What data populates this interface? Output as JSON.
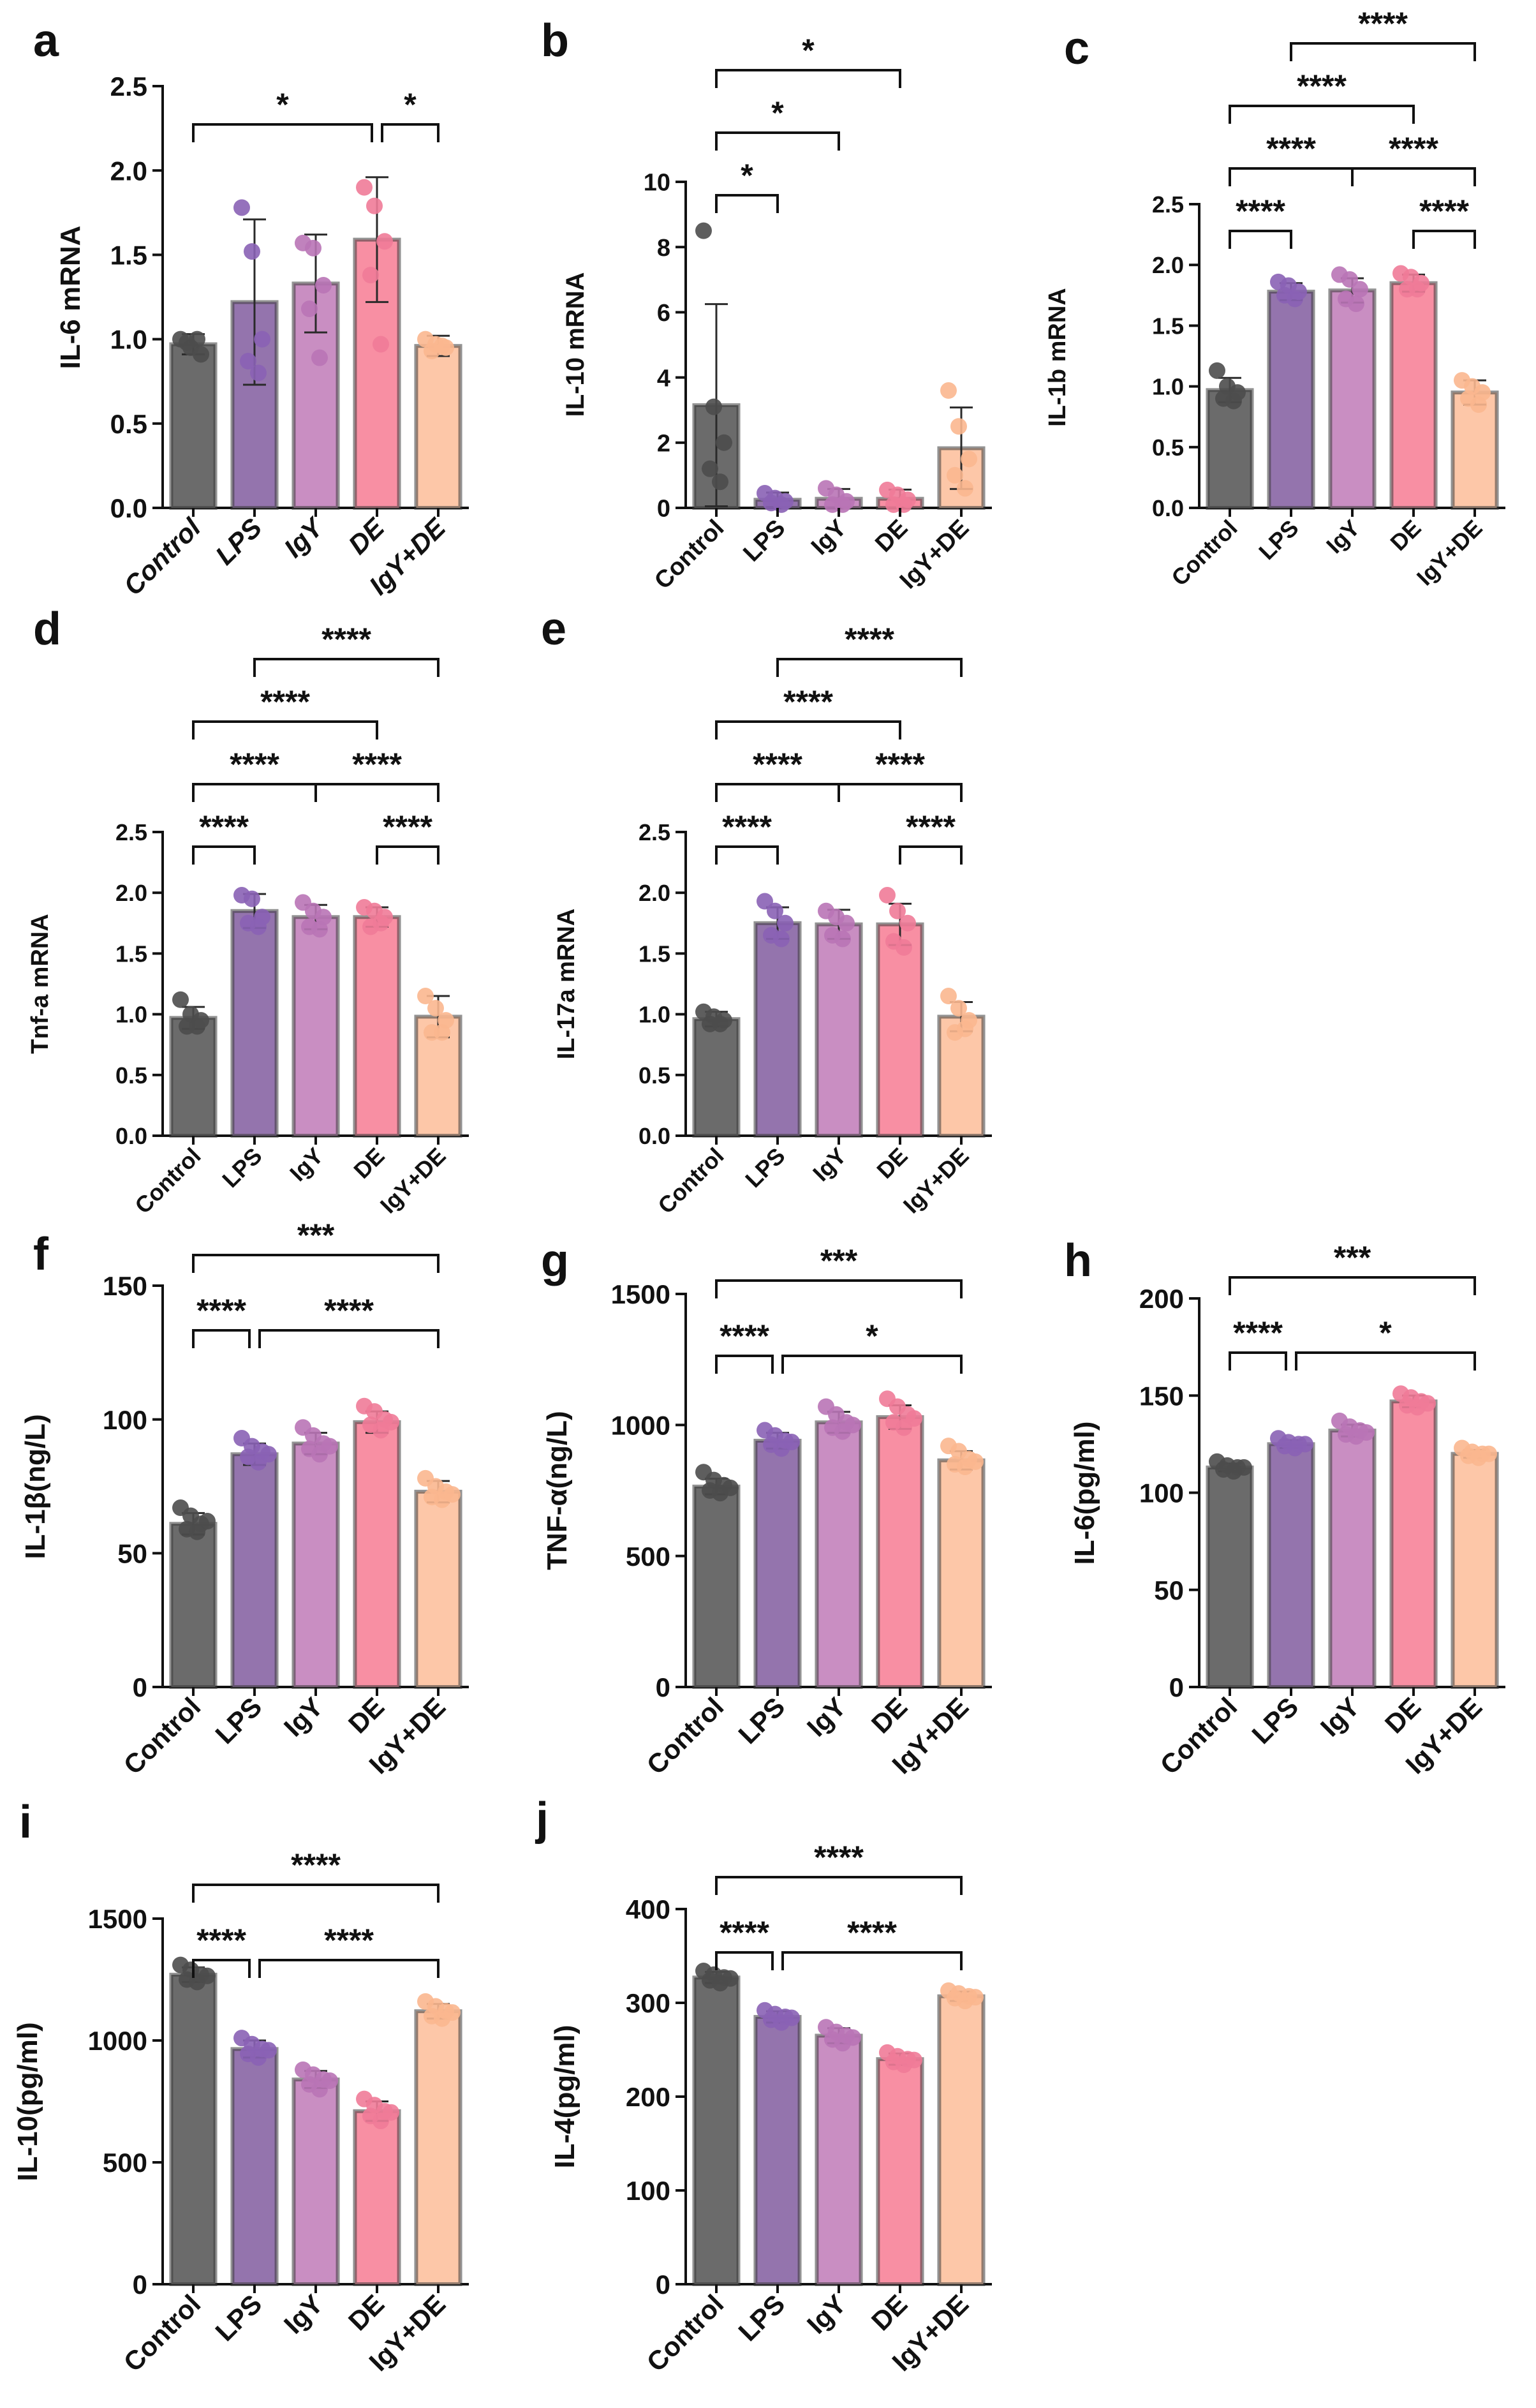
{
  "figure": {
    "colors": {
      "Control": "#6b6b6b",
      "LPS": "#9474ad",
      "IgY": "#c98ec2",
      "DE": "#f88fa3",
      "IgY+DE": "#fdc7a8"
    },
    "dot_colors": {
      "Control": "#4d4d4d",
      "LPS": "#8a62b5",
      "IgY": "#b974b6",
      "DE": "#f07b98",
      "IgY+DE": "#fbb78f"
    }
  },
  "chart_data": [
    {
      "panel": "a",
      "type": "bar",
      "ylabel": "IL-6 mRNA",
      "italic_ticks": true,
      "categories": [
        "Control",
        "LPS",
        "IgY",
        "DE",
        "IgY+DE"
      ],
      "values": [
        0.97,
        1.22,
        1.33,
        1.59,
        0.96
      ],
      "errors": [
        0.06,
        0.49,
        0.29,
        0.37,
        0.06
      ],
      "points": [
        [
          1.0,
          0.95,
          0.91,
          0.98,
          1.0
        ],
        [
          1.78,
          1.52,
          1.0,
          0.87,
          0.8
        ],
        [
          1.57,
          1.54,
          1.32,
          1.18,
          0.89
        ],
        [
          1.9,
          1.79,
          1.58,
          1.38,
          0.97
        ],
        [
          1.0,
          0.97,
          0.95,
          0.93,
          0.96
        ]
      ],
      "ylim": [
        0,
        2.5
      ],
      "yticks": [
        0,
        0.5,
        1,
        1.5,
        2,
        2.5
      ],
      "ytick_labels": [
        "0.0",
        "0.5",
        "1.0",
        "1.5",
        "2.0",
        "2.5"
      ],
      "significance": [
        {
          "from": "Control",
          "to": "DE",
          "label": "*"
        },
        {
          "from": "DE",
          "to": "IgY+DE",
          "label": "*"
        }
      ]
    },
    {
      "panel": "b",
      "type": "bar",
      "ylabel": "IL-10 mRNA",
      "italic_ticks": false,
      "categories": [
        "Control",
        "LPS",
        "IgY",
        "DE",
        "IgY+DE"
      ],
      "values": [
        3.15,
        0.25,
        0.28,
        0.28,
        1.83
      ],
      "errors": [
        3.1,
        0.22,
        0.3,
        0.28,
        1.25
      ],
      "points": [
        [
          8.5,
          3.1,
          2.0,
          1.2,
          0.8
        ],
        [
          0.45,
          0.3,
          0.2,
          0.15,
          0.1
        ],
        [
          0.6,
          0.4,
          0.2,
          0.1,
          0.1
        ],
        [
          0.55,
          0.4,
          0.25,
          0.1,
          0.1
        ],
        [
          3.6,
          2.5,
          1.5,
          1.0,
          0.6
        ]
      ],
      "ylim": [
        0,
        10
      ],
      "yticks": [
        0,
        2,
        4,
        6,
        8,
        10
      ],
      "ytick_labels": [
        "0",
        "2",
        "4",
        "6",
        "8",
        "10"
      ],
      "significance": [
        {
          "from": "Control",
          "to": "LPS",
          "label": "*"
        },
        {
          "from": "Control",
          "to": "IgY",
          "label": "*"
        },
        {
          "from": "Control",
          "to": "DE",
          "label": "*"
        }
      ]
    },
    {
      "panel": "c",
      "type": "bar",
      "ylabel": "IL-1b mRNA",
      "italic_ticks": false,
      "categories": [
        "Control",
        "LPS",
        "IgY",
        "DE",
        "IgY+DE"
      ],
      "values": [
        0.97,
        1.78,
        1.79,
        1.85,
        0.95
      ],
      "errors": [
        0.1,
        0.07,
        0.1,
        0.07,
        0.1
      ],
      "points": [
        [
          1.13,
          1.0,
          0.95,
          0.9,
          0.88
        ],
        [
          1.86,
          1.83,
          1.78,
          1.75,
          1.72
        ],
        [
          1.92,
          1.88,
          1.8,
          1.72,
          1.68
        ],
        [
          1.93,
          1.9,
          1.85,
          1.8,
          1.8
        ],
        [
          1.05,
          1.0,
          0.95,
          0.9,
          0.85
        ]
      ],
      "ylim": [
        0,
        2.5
      ],
      "yticks": [
        0,
        0.5,
        1,
        1.5,
        2,
        2.5
      ],
      "ytick_labels": [
        "0.0",
        "0.5",
        "1.0",
        "1.5",
        "2.0",
        "2.5"
      ],
      "significance": [
        {
          "from": "Control",
          "to": "LPS",
          "label": "****"
        },
        {
          "from": "DE",
          "to": "IgY+DE",
          "label": "****"
        },
        {
          "from": "Control",
          "to": "IgY",
          "label": "****"
        },
        {
          "from": "IgY",
          "to": "IgY+DE",
          "label": "****"
        },
        {
          "from": "Control",
          "to": "DE",
          "label": "****"
        },
        {
          "from": "LPS",
          "to": "IgY+DE",
          "label": "****"
        }
      ]
    },
    {
      "panel": "d",
      "type": "bar",
      "ylabel": "Tnf-a mRNA",
      "italic_ticks": false,
      "categories": [
        "Control",
        "LPS",
        "IgY",
        "DE",
        "IgY+DE"
      ],
      "values": [
        0.97,
        1.85,
        1.8,
        1.8,
        0.98
      ],
      "errors": [
        0.09,
        0.14,
        0.1,
        0.08,
        0.17
      ],
      "points": [
        [
          1.12,
          1.0,
          0.95,
          0.9,
          0.9
        ],
        [
          1.98,
          1.95,
          1.8,
          1.75,
          1.72
        ],
        [
          1.92,
          1.85,
          1.8,
          1.72,
          1.7
        ],
        [
          1.88,
          1.85,
          1.8,
          1.72,
          1.75
        ],
        [
          1.15,
          1.05,
          0.95,
          0.85,
          0.85
        ]
      ],
      "ylim": [
        0,
        2.5
      ],
      "yticks": [
        0,
        0.5,
        1,
        1.5,
        2,
        2.5
      ],
      "ytick_labels": [
        "0.0",
        "0.5",
        "1.0",
        "1.5",
        "2.0",
        "2.5"
      ],
      "significance": [
        {
          "from": "Control",
          "to": "LPS",
          "label": "****"
        },
        {
          "from": "DE",
          "to": "IgY+DE",
          "label": "****"
        },
        {
          "from": "Control",
          "to": "IgY",
          "label": "****"
        },
        {
          "from": "IgY",
          "to": "IgY+DE",
          "label": "****"
        },
        {
          "from": "Control",
          "to": "DE",
          "label": "****"
        },
        {
          "from": "LPS",
          "to": "IgY+DE",
          "label": "****"
        }
      ]
    },
    {
      "panel": "e",
      "type": "bar",
      "ylabel": "IL-17a mRNA",
      "italic_ticks": false,
      "categories": [
        "Control",
        "LPS",
        "IgY",
        "DE",
        "IgY+DE"
      ],
      "values": [
        0.96,
        1.75,
        1.74,
        1.74,
        0.98
      ],
      "errors": [
        0.06,
        0.13,
        0.12,
        0.17,
        0.12
      ],
      "points": [
        [
          1.02,
          0.98,
          0.95,
          0.92,
          0.92
        ],
        [
          1.93,
          1.85,
          1.75,
          1.65,
          1.62
        ],
        [
          1.85,
          1.8,
          1.75,
          1.65,
          1.62
        ],
        [
          1.98,
          1.85,
          1.75,
          1.6,
          1.55
        ],
        [
          1.15,
          1.05,
          0.95,
          0.85,
          0.88
        ]
      ],
      "ylim": [
        0,
        2.5
      ],
      "yticks": [
        0,
        0.5,
        1,
        1.5,
        2,
        2.5
      ],
      "ytick_labels": [
        "0.0",
        "0.5",
        "1.0",
        "1.5",
        "2.0",
        "2.5"
      ],
      "significance": [
        {
          "from": "Control",
          "to": "LPS",
          "label": "****"
        },
        {
          "from": "DE",
          "to": "IgY+DE",
          "label": "****"
        },
        {
          "from": "Control",
          "to": "IgY",
          "label": "****"
        },
        {
          "from": "IgY",
          "to": "IgY+DE",
          "label": "****"
        },
        {
          "from": "Control",
          "to": "DE",
          "label": "****"
        },
        {
          "from": "LPS",
          "to": "IgY+DE",
          "label": "****"
        }
      ]
    },
    {
      "panel": "f",
      "type": "bar",
      "ylabel": "IL-1β(ng/L)",
      "italic_ticks": false,
      "categories": [
        "Control",
        "LPS",
        "IgY",
        "DE",
        "IgY+DE"
      ],
      "values": [
        61,
        87,
        91,
        99,
        73
      ],
      "errors": [
        4,
        4,
        4,
        4,
        4
      ],
      "points": [
        [
          67,
          64,
          61,
          59,
          58,
          62
        ],
        [
          93,
          90,
          88,
          86,
          84,
          87
        ],
        [
          97,
          94,
          91,
          89,
          87,
          90
        ],
        [
          105,
          103,
          100,
          98,
          96,
          99
        ],
        [
          78,
          75,
          73,
          71,
          70,
          72
        ]
      ],
      "ylim": [
        0,
        150
      ],
      "yticks": [
        0,
        50,
        100,
        150
      ],
      "ytick_labels": [
        "0",
        "50",
        "100",
        "150"
      ],
      "significance": [
        {
          "from": "Control",
          "to": "LPS",
          "label": "****"
        },
        {
          "from": "LPS",
          "to": "IgY+DE",
          "label": "****"
        },
        {
          "from": "Control",
          "to": "IgY+DE",
          "label": "***"
        }
      ]
    },
    {
      "panel": "g",
      "type": "bar",
      "ylabel": "TNF-α(ng/L)",
      "italic_ticks": false,
      "categories": [
        "Control",
        "LPS",
        "IgY",
        "DE",
        "IgY+DE"
      ],
      "values": [
        765,
        940,
        1010,
        1030,
        865
      ],
      "errors": [
        30,
        30,
        40,
        45,
        35
      ],
      "points": [
        [
          820,
          790,
          770,
          750,
          740,
          760
        ],
        [
          980,
          960,
          940,
          925,
          910,
          935
        ],
        [
          1070,
          1040,
          1010,
          990,
          975,
          1000
        ],
        [
          1100,
          1070,
          1040,
          1010,
          990,
          1025
        ],
        [
          920,
          900,
          870,
          850,
          840,
          860
        ]
      ],
      "ylim": [
        0,
        1500
      ],
      "yticks": [
        0,
        500,
        1000,
        1500
      ],
      "ytick_labels": [
        "0",
        "500",
        "1000",
        "1500"
      ],
      "significance": [
        {
          "from": "Control",
          "to": "LPS",
          "label": "****"
        },
        {
          "from": "LPS",
          "to": "IgY+DE",
          "label": "*"
        },
        {
          "from": "Control",
          "to": "IgY+DE",
          "label": "***"
        }
      ]
    },
    {
      "panel": "h",
      "type": "bar",
      "ylabel": "IL-6(pg/ml)",
      "italic_ticks": false,
      "categories": [
        "Control",
        "LPS",
        "IgY",
        "DE",
        "IgY+DE"
      ],
      "values": [
        113,
        125,
        132,
        147,
        120
      ],
      "errors": [
        2,
        2,
        3,
        3,
        2
      ],
      "points": [
        [
          116,
          114,
          113,
          112,
          111,
          113
        ],
        [
          128,
          126,
          125,
          124,
          123,
          125
        ],
        [
          137,
          134,
          132,
          130,
          129,
          131
        ],
        [
          151,
          149,
          147,
          145,
          144,
          146
        ],
        [
          123,
          121,
          120,
          119,
          118,
          120
        ]
      ],
      "ylim": [
        0,
        200
      ],
      "yticks": [
        0,
        50,
        100,
        150,
        200
      ],
      "ytick_labels": [
        "0",
        "50",
        "100",
        "150",
        "200"
      ],
      "significance": [
        {
          "from": "Control",
          "to": "LPS",
          "label": "****"
        },
        {
          "from": "LPS",
          "to": "IgY+DE",
          "label": "*"
        },
        {
          "from": "Control",
          "to": "IgY+DE",
          "label": "***"
        }
      ]
    },
    {
      "panel": "i",
      "type": "bar",
      "ylabel": "IL-10(pg/ml)",
      "italic_ticks": false,
      "categories": [
        "Control",
        "LPS",
        "IgY",
        "DE",
        "IgY+DE"
      ],
      "values": [
        1270,
        965,
        840,
        710,
        1120
      ],
      "errors": [
        30,
        35,
        35,
        40,
        30
      ],
      "points": [
        [
          1310,
          1290,
          1270,
          1250,
          1240,
          1265
        ],
        [
          1010,
          985,
          965,
          945,
          930,
          960
        ],
        [
          880,
          860,
          840,
          820,
          800,
          835
        ],
        [
          760,
          735,
          710,
          690,
          670,
          705
        ],
        [
          1160,
          1140,
          1120,
          1100,
          1090,
          1115
        ]
      ],
      "ylim": [
        0,
        1500
      ],
      "yticks": [
        0,
        500,
        1000,
        1500
      ],
      "ytick_labels": [
        "0",
        "500",
        "1000",
        "1500"
      ],
      "significance": [
        {
          "from": "Control",
          "to": "LPS",
          "label": "****"
        },
        {
          "from": "LPS",
          "to": "IgY+DE",
          "label": "****"
        },
        {
          "from": "Control",
          "to": "IgY+DE",
          "label": "****"
        }
      ]
    },
    {
      "panel": "j",
      "type": "bar",
      "ylabel": "IL-4(pg/ml)",
      "italic_ticks": false,
      "categories": [
        "Control",
        "LPS",
        "IgY",
        "DE",
        "IgY+DE"
      ],
      "values": [
        327,
        285,
        265,
        240,
        307
      ],
      "errors": [
        6,
        6,
        8,
        6,
        5
      ],
      "points": [
        [
          334,
          330,
          327,
          324,
          321,
          326
        ],
        [
          292,
          288,
          285,
          282,
          279,
          284
        ],
        [
          274,
          269,
          265,
          261,
          257,
          263
        ],
        [
          247,
          243,
          240,
          237,
          234,
          239
        ],
        [
          313,
          310,
          307,
          305,
          302,
          306
        ]
      ],
      "ylim": [
        0,
        400
      ],
      "yticks": [
        0,
        100,
        200,
        300,
        400
      ],
      "ytick_labels": [
        "0",
        "100",
        "200",
        "300",
        "400"
      ],
      "significance": [
        {
          "from": "Control",
          "to": "LPS",
          "label": "****"
        },
        {
          "from": "LPS",
          "to": "IgY+DE",
          "label": "****"
        },
        {
          "from": "Control",
          "to": "IgY+DE",
          "label": "****"
        }
      ]
    }
  ]
}
